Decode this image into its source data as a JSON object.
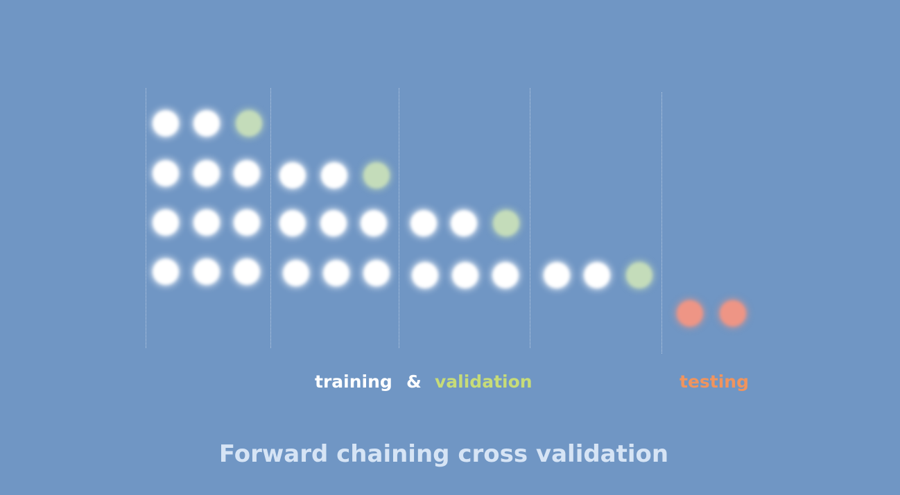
{
  "diagram": {
    "rows": [
      [
        "train",
        "train",
        "valid"
      ],
      [
        "train",
        "train",
        "train",
        "train",
        "train",
        "valid"
      ],
      [
        "train",
        "train",
        "train",
        "train",
        "train",
        "train",
        "train",
        "train",
        "valid"
      ],
      [
        "train",
        "train",
        "train",
        "train",
        "train",
        "train",
        "train",
        "train",
        "train",
        "train",
        "train",
        "valid"
      ],
      [
        "test",
        "test"
      ]
    ],
    "colors": {
      "background": "#7096c4",
      "train": "#ffffff",
      "valid": "#c4dcba",
      "test": "#ee9585"
    }
  },
  "legend": {
    "training": "training",
    "ampersand": "&",
    "validation": "validation",
    "testing": "testing",
    "training_color": "#ffffff",
    "validation_color": "#c7dc78",
    "testing_color": "#f0945e"
  },
  "title": "Forward chaining cross validation"
}
